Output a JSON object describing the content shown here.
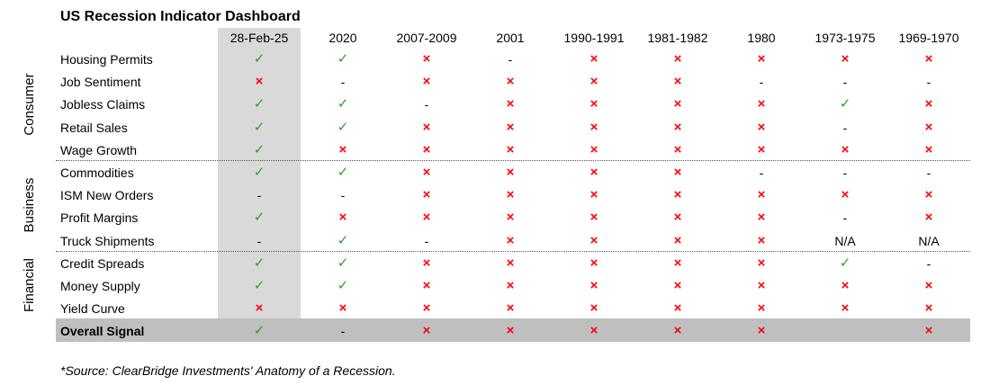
{
  "chart_data": {
    "type": "table",
    "title": "US Recession Indicator Dashboard",
    "columns": [
      "28-Feb-25",
      "2020",
      "2007-2009",
      "2001",
      "1990-1991",
      "1981-1982",
      "1980",
      "1973-1975",
      "1969-1970"
    ],
    "groups": [
      {
        "label": "Consumer",
        "rows": [
          0,
          4
        ]
      },
      {
        "label": "Business",
        "rows": [
          5,
          8
        ]
      },
      {
        "label": "Financial",
        "rows": [
          9,
          11
        ]
      }
    ],
    "rows": [
      {
        "label": "Housing Permits",
        "values": [
          "check",
          "check",
          "cross",
          "dash",
          "cross",
          "cross",
          "cross",
          "cross",
          "cross"
        ]
      },
      {
        "label": "Job Sentiment",
        "values": [
          "cross",
          "dash",
          "cross",
          "cross",
          "cross",
          "cross",
          "dash",
          "dash",
          "dash"
        ]
      },
      {
        "label": "Jobless Claims",
        "values": [
          "check",
          "check",
          "dash",
          "cross",
          "cross",
          "cross",
          "cross",
          "check",
          "cross"
        ]
      },
      {
        "label": "Retail Sales",
        "values": [
          "check",
          "check",
          "cross",
          "cross",
          "cross",
          "cross",
          "cross",
          "dash",
          "cross"
        ]
      },
      {
        "label": "Wage Growth",
        "values": [
          "check",
          "cross",
          "cross",
          "cross",
          "cross",
          "cross",
          "cross",
          "cross",
          "cross"
        ]
      },
      {
        "label": "Commodities",
        "values": [
          "check",
          "check",
          "cross",
          "cross",
          "cross",
          "cross",
          "dash",
          "dash",
          "dash"
        ]
      },
      {
        "label": "ISM New Orders",
        "values": [
          "dash",
          "dash",
          "cross",
          "cross",
          "cross",
          "cross",
          "cross",
          "cross",
          "cross"
        ]
      },
      {
        "label": "Profit Margins",
        "values": [
          "check",
          "cross",
          "cross",
          "cross",
          "cross",
          "cross",
          "cross",
          "dash",
          "cross"
        ]
      },
      {
        "label": "Truck Shipments",
        "values": [
          "dash",
          "check",
          "dash",
          "cross",
          "cross",
          "cross",
          "cross",
          "N/A",
          "N/A"
        ]
      },
      {
        "label": "Credit Spreads",
        "values": [
          "check",
          "check",
          "cross",
          "cross",
          "cross",
          "cross",
          "cross",
          "check",
          "dash"
        ]
      },
      {
        "label": "Money Supply",
        "values": [
          "check",
          "check",
          "cross",
          "cross",
          "cross",
          "cross",
          "cross",
          "cross",
          "cross"
        ]
      },
      {
        "label": "Yield Curve",
        "values": [
          "cross",
          "cross",
          "cross",
          "cross",
          "cross",
          "cross",
          "cross",
          "cross",
          "cross"
        ]
      }
    ],
    "overall": {
      "label": "Overall Signal",
      "values": [
        "check",
        "dash",
        "cross",
        "cross",
        "cross",
        "cross",
        "cross",
        "blank",
        "cross"
      ]
    },
    "highlight_column": "28-Feb-25",
    "colors": {
      "check": "#2ca02c",
      "cross": "#ff0000",
      "highlight": "#d9d9d9",
      "overall_band": "#bfbfbf"
    },
    "symbols": {
      "check": "✓",
      "cross": "×",
      "dash": "-",
      "blank": ""
    }
  },
  "source": "*Source: ClearBridge Investments' Anatomy of a Recession."
}
